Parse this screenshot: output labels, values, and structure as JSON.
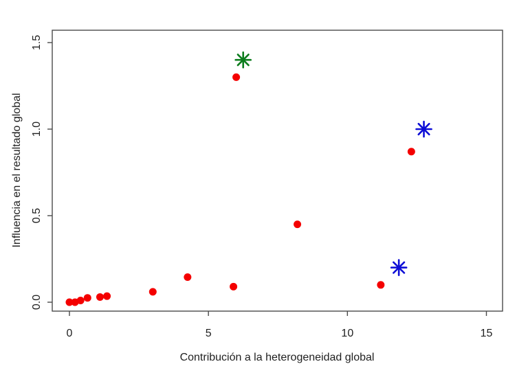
{
  "figure": {
    "background": "#ffffff",
    "axis_color": "#4a4a4a",
    "text_color": "#1f1f1f"
  },
  "chart_data": {
    "type": "scatter",
    "title": "",
    "xlabel": "Contribución a la heterogeneidad global",
    "ylabel": "Influencia en el resultado global",
    "xlim": [
      0,
      15
    ],
    "ylim": [
      0,
      1.5
    ],
    "x_ticks": [
      0,
      5,
      10,
      15
    ],
    "x_tick_labels": [
      "0",
      "5",
      "10",
      "15"
    ],
    "y_ticks": [
      0,
      0.5,
      1.0,
      1.5
    ],
    "y_tick_labels": [
      "0.0",
      "0.5",
      "1.0",
      "1.5"
    ],
    "grid": false,
    "legend_position": "none",
    "series": [
      {
        "name": "estudios",
        "marker": "circle",
        "color": "#f40000",
        "size": 5.5,
        "points": [
          [
            0.0,
            0.0
          ],
          [
            0.2,
            0.0
          ],
          [
            0.4,
            0.01
          ],
          [
            0.65,
            0.025
          ],
          [
            1.1,
            0.03
          ],
          [
            1.35,
            0.035
          ],
          [
            3.0,
            0.06
          ],
          [
            4.25,
            0.145
          ],
          [
            5.9,
            0.09
          ],
          [
            6.0,
            1.3
          ],
          [
            8.2,
            0.45
          ],
          [
            11.2,
            0.1
          ],
          [
            12.3,
            0.87
          ]
        ]
      },
      {
        "name": "estudio-destacado-verde",
        "marker": "asterisk",
        "color": "#0d7d1e",
        "size": 11,
        "points": [
          [
            6.25,
            1.4
          ]
        ]
      },
      {
        "name": "estudios-destacados-azules",
        "marker": "asterisk",
        "color": "#0d0dd6",
        "size": 11,
        "points": [
          [
            12.75,
            1.0
          ],
          [
            11.85,
            0.2
          ]
        ]
      }
    ]
  }
}
